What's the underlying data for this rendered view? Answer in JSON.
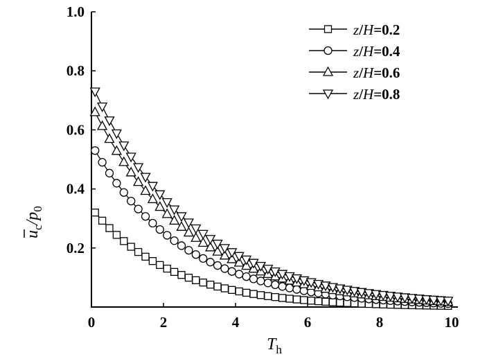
{
  "chart_data": {
    "type": "line",
    "xlabel": "T_h",
    "ylabel": "ū_c/p_0",
    "xlim": [
      0,
      10
    ],
    "ylim": [
      0,
      1.0
    ],
    "xticks": [
      0,
      2,
      4,
      6,
      8,
      10
    ],
    "yticks": [
      0.2,
      0.4,
      0.6,
      0.8,
      1.0
    ],
    "x_tick_labels": [
      "0",
      "2",
      "4",
      "6",
      "8",
      "10"
    ],
    "y_tick_labels": [
      "0.2",
      "0.4",
      "0.6",
      "0.8",
      "1.0"
    ],
    "legend_position": "top-right",
    "series": [
      {
        "name": "z/H=0.2",
        "marker": "square",
        "y0": 0.32,
        "decay": 0.45
      },
      {
        "name": "z/H=0.4",
        "marker": "circle",
        "y0": 0.53,
        "decay": 0.39
      },
      {
        "name": "z/H=0.6",
        "marker": "triangle-up",
        "y0": 0.66,
        "decay": 0.37
      },
      {
        "name": "z/H=0.8",
        "marker": "triangle-down",
        "y0": 0.73,
        "decay": 0.36
      }
    ],
    "x_points": [
      0.1,
      0.3,
      0.5,
      0.7,
      0.9,
      1.1,
      1.3,
      1.5,
      1.7,
      1.9,
      2.1,
      2.3,
      2.5,
      2.7,
      2.9,
      3.1,
      3.3,
      3.5,
      3.7,
      3.9,
      4.1,
      4.3,
      4.5,
      4.7,
      4.9,
      5.1,
      5.3,
      5.5,
      5.7,
      5.9,
      6.1,
      6.3,
      6.5,
      6.7,
      6.9,
      7.1,
      7.3,
      7.5,
      7.7,
      7.9,
      8.1,
      8.3,
      8.5,
      8.7,
      8.9,
      9.1,
      9.3,
      9.5,
      9.7,
      9.9
    ]
  },
  "legend": {
    "entries": [
      {
        "var": "z",
        "slash": "/",
        "den": "H",
        "val": "=0.2"
      },
      {
        "var": "z",
        "slash": "/",
        "den": "H",
        "val": "=0.4"
      },
      {
        "var": "z",
        "slash": "/",
        "den": "H",
        "val": "=0.6"
      },
      {
        "var": "z",
        "slash": "/",
        "den": "H",
        "val": "=0.8"
      }
    ]
  },
  "axes": {
    "x_title_main": "T",
    "x_title_sub": "h",
    "y_title_u": "u",
    "y_title_c": "c",
    "y_title_slash": "/",
    "y_title_p": "p",
    "y_title_0": "0"
  }
}
